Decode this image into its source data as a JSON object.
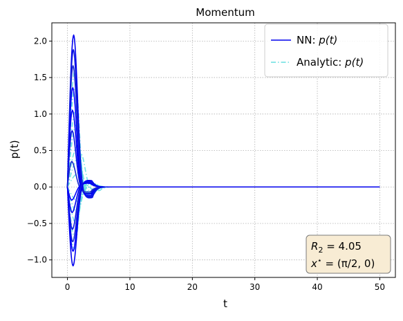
{
  "chart_data": {
    "type": "line",
    "title": "Momentum",
    "xlabel": "t",
    "ylabel": "p(t)",
    "xlim": [
      -2.5,
      52.5
    ],
    "ylim": [
      -1.24,
      2.25
    ],
    "xticks": [
      0,
      10,
      20,
      30,
      40,
      50
    ],
    "yticks": [
      -1.0,
      -0.5,
      0.0,
      0.5,
      1.0,
      1.5,
      2.0
    ],
    "xtick_labels": [
      "0",
      "10",
      "20",
      "30",
      "40",
      "50"
    ],
    "ytick_labels": [
      "−1.0",
      "−0.5",
      "0.0",
      "0.5",
      "1.0",
      "1.5",
      "2.0"
    ],
    "grid": true,
    "legend_position": "top-right",
    "legend": [
      {
        "prefix": "NN: ",
        "math": "p(t)",
        "color": "#0000ee",
        "style": "solid"
      },
      {
        "prefix": "Analytic: ",
        "math": "p(t)",
        "color": "#66dde0",
        "style": "dashdot"
      }
    ],
    "annotation": {
      "line1_math": "R",
      "line1_sub": "2",
      "line1_rest": " = 4.05",
      "line2_math": "x",
      "line2_sup": "⋆",
      "line2_rest": " = (π/2, 0)",
      "box_color": "#f8ecd4"
    },
    "series_style": {
      "nn_colors": [
        "#0000ee",
        "#0a14e0",
        "#1a2ad0",
        "#0000ff"
      ],
      "analytic_color": "#66dde0"
    },
    "nn_series": [
      {
        "peak": 2.08,
        "peak_t": 1.0,
        "undershoot": -0.15
      },
      {
        "peak": 1.88,
        "peak_t": 0.95,
        "undershoot": -0.14
      },
      {
        "peak": 1.66,
        "peak_t": 0.9,
        "undershoot": -0.13
      },
      {
        "peak": 1.36,
        "peak_t": 0.85,
        "undershoot": -0.12
      },
      {
        "peak": 1.05,
        "peak_t": 0.8,
        "undershoot": -0.1
      },
      {
        "peak": 0.77,
        "peak_t": 0.75,
        "undershoot": -0.09
      },
      {
        "peak": 0.35,
        "peak_t": 0.7,
        "undershoot": -0.07
      },
      {
        "peak": -0.18,
        "peak_t": 0.7,
        "undershoot": 0.05
      },
      {
        "peak": -0.35,
        "peak_t": 0.75,
        "undershoot": 0.06
      },
      {
        "peak": -0.58,
        "peak_t": 0.8,
        "undershoot": 0.07
      },
      {
        "peak": -0.75,
        "peak_t": 0.85,
        "undershoot": 0.08
      },
      {
        "peak": -0.88,
        "peak_t": 0.9,
        "undershoot": 0.08
      },
      {
        "peak": -1.08,
        "peak_t": 0.9,
        "undershoot": 0.09
      }
    ],
    "analytic_series": [
      {
        "peak": 1.6,
        "peak_t": 1.2,
        "undershoot": -0.12
      },
      {
        "peak": 1.35,
        "peak_t": 1.2,
        "undershoot": -0.1
      },
      {
        "peak": 1.05,
        "peak_t": 1.3,
        "undershoot": -0.09
      },
      {
        "peak": 0.85,
        "peak_t": 1.4,
        "undershoot": -0.08
      },
      {
        "peak": 0.55,
        "peak_t": 1.6,
        "undershoot": -0.06
      },
      {
        "peak": 0.45,
        "peak_t": 2.2,
        "undershoot": -0.05
      },
      {
        "peak": 0.2,
        "peak_t": 2.0,
        "undershoot": -0.03
      },
      {
        "peak": -0.2,
        "peak_t": 1.8,
        "undershoot": 0.03
      },
      {
        "peak": -0.35,
        "peak_t": 1.6,
        "undershoot": 0.04
      },
      {
        "peak": -0.5,
        "peak_t": 1.4,
        "undershoot": 0.05
      },
      {
        "peak": -0.7,
        "peak_t": 1.2,
        "undershoot": 0.06
      },
      {
        "peak": -0.85,
        "peak_t": 1.1,
        "undershoot": 0.07
      }
    ]
  }
}
